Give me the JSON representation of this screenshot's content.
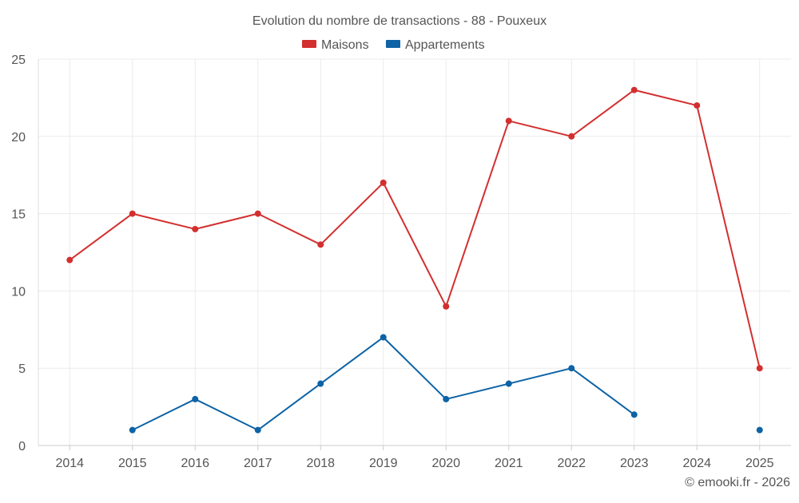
{
  "chart_data": {
    "type": "line",
    "title": "Evolution du nombre de transactions - 88 - Pouxeux",
    "categories": [
      "2014",
      "2015",
      "2016",
      "2017",
      "2018",
      "2019",
      "2020",
      "2021",
      "2022",
      "2023",
      "2024",
      "2025"
    ],
    "series": [
      {
        "name": "Maisons",
        "color": "#d32f2f",
        "values": [
          12,
          15,
          14,
          15,
          13,
          17,
          9,
          21,
          20,
          23,
          22,
          5
        ]
      },
      {
        "name": "Appartements",
        "color": "#0d63a5",
        "values": [
          null,
          1,
          3,
          1,
          4,
          7,
          3,
          4,
          5,
          2,
          null,
          1
        ]
      }
    ],
    "yticks": [
      "0",
      "5",
      "10",
      "15",
      "20",
      "25"
    ],
    "ylim": [
      0,
      25
    ],
    "xlabel": "",
    "ylabel": "",
    "legend_position": "top-center",
    "grid": true
  },
  "credit": "© emooki.fr - 2026"
}
